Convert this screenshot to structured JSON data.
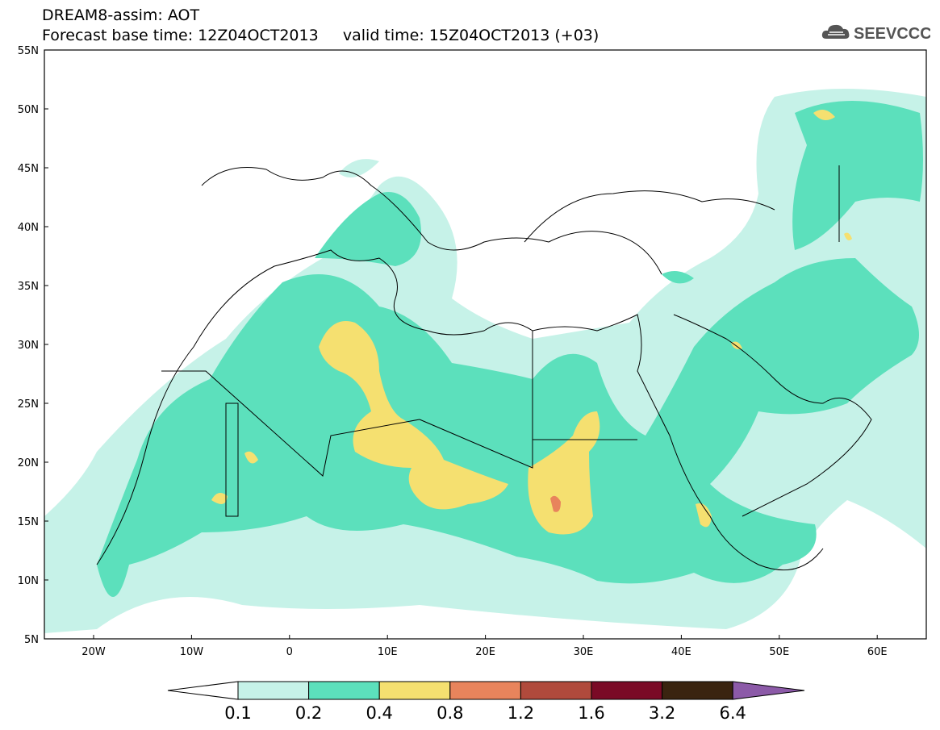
{
  "header": {
    "title_line1": "DREAM8-assim: AOT",
    "title_line2": "Forecast base time: 12Z04OCT2013     valid time: 15Z04OCT2013 (+03)"
  },
  "logo": {
    "text": "SEEVCCC",
    "icon": "cloud-icon"
  },
  "map": {
    "lat_labels": [
      "55N",
      "50N",
      "45N",
      "40N",
      "35N",
      "30N",
      "25N",
      "20N",
      "15N",
      "10N",
      "5N"
    ],
    "lon_labels": [
      "20W",
      "10W",
      "0",
      "10E",
      "20E",
      "30E",
      "40E",
      "50E",
      "60E"
    ]
  },
  "colorbar": {
    "labels": [
      "0.1",
      "0.2",
      "0.4",
      "0.8",
      "1.2",
      "1.6",
      "3.2",
      "6.4"
    ],
    "colors": [
      "#c6f2e8",
      "#5ce0bc",
      "#f5e070",
      "#e8845c",
      "#b04a3c",
      "#7a0a26",
      "#3a2410",
      "#8c5aa8"
    ]
  }
}
